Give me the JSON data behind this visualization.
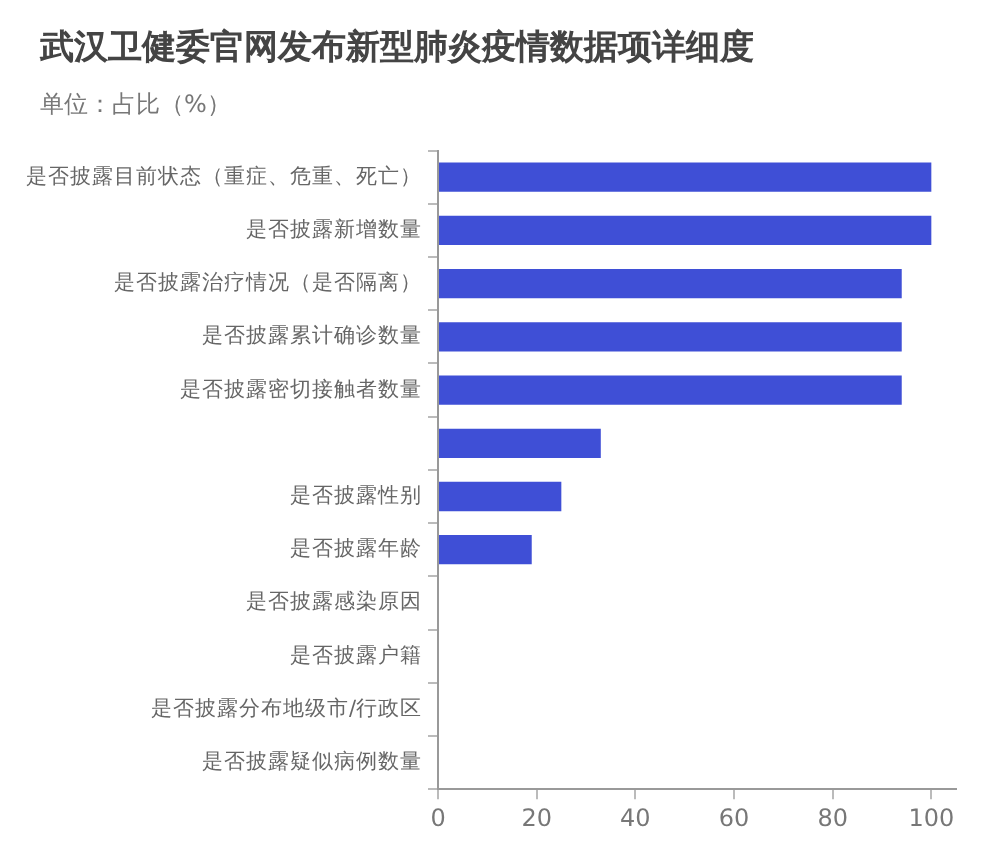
{
  "chart_data": {
    "type": "bar",
    "orientation": "horizontal",
    "title": "武汉卫健委官网发布新型肺炎疫情数据项详细度",
    "subtitle": "单位：占比（%）",
    "categories": [
      "是否披露目前状态（重症、危重、死亡）",
      "是否披露新增数量",
      "是否披露治疗情况（是否隔离）",
      "是否披露累计确诊数量",
      "是否披露密切接触者数量",
      null,
      "是否披露性别",
      "是否披露年龄",
      "是否披露感染原因",
      "是否披露户籍",
      "是否披露分布地级市/行政区",
      "是否披露疑似病例数量"
    ],
    "values": [
      100,
      100,
      94,
      94,
      94,
      33,
      25,
      19,
      0,
      0,
      0,
      0
    ],
    "color": "#3f4fd6",
    "xlim": [
      0,
      105
    ],
    "xticks": [
      0,
      20,
      40,
      60,
      80,
      100
    ],
    "grid": false
  }
}
